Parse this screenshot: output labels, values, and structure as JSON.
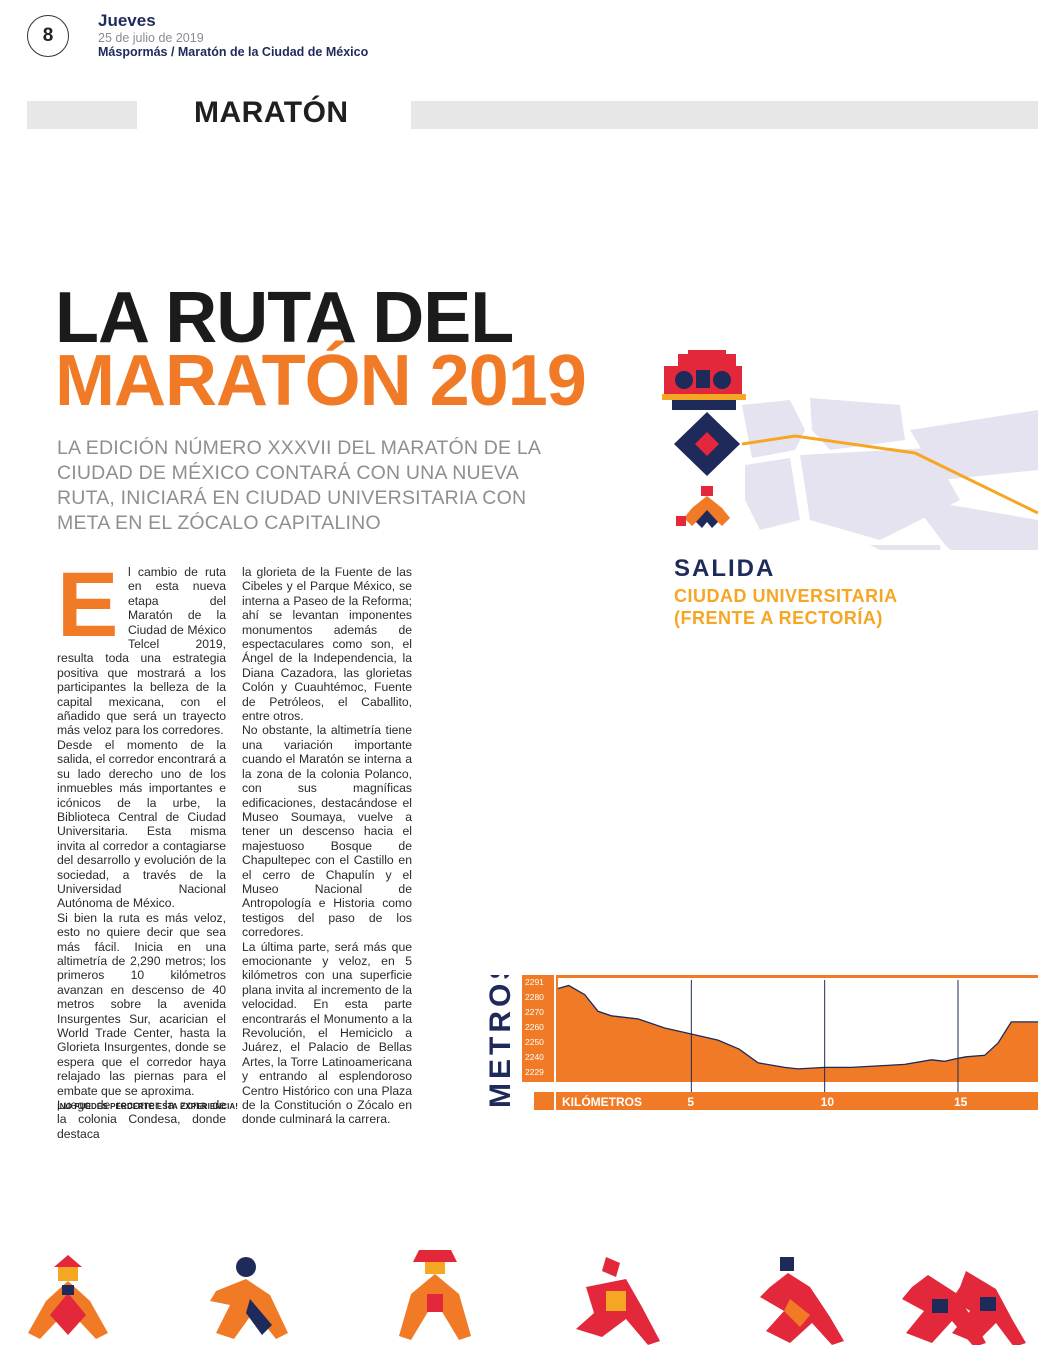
{
  "header": {
    "page_number": "8",
    "day": "Jueves",
    "date": "25 de julio de 2019",
    "section_path": "Máspormás / Maratón de la Ciudad de México",
    "section_title": "MARATÓN"
  },
  "article": {
    "title_line1": "LA RUTA DEL",
    "title_line2": "MARATÓN 2019",
    "subtitle": "LA EDICIÓN NÚMERO XXXVII DEL MARATÓN DE LA CIUDAD DE MÉXICO CONTARÁ CON UNA NUEVA RUTA, INICIARÁ EN CIUDAD UNIVERSITARIA CON META EN EL ZÓCALO CAPITALINO",
    "drop_cap": "E",
    "col1_p1": "l cambio de ruta en esta nueva etapa del Maratón de la Ciudad de México Telcel 2019, resulta toda una estrategia positiva que mostrará a los participantes la belleza de la capital mexicana, con el añadido que será un trayecto más veloz para los corredores.",
    "col1_p2": "Desde el momento de la salida, el corredor encontrará a su lado derecho uno de los inmuebles más importantes e icónicos de la urbe, la Biblioteca Central de Ciudad Universitaria. Esta misma invita al corredor a contagiarse del desarrollo y evolución de la sociedad, a través de la Universidad Nacional Autónoma de México.",
    "col1_p3": "Si bien la ruta es más veloz, esto no quiere decir que sea más fácil. Inicia en una altimetría de 2,290 metros; los primeros 10 kilómetros avanzan en descenso de 40 metros sobre la avenida Insurgentes Sur, acarician el World Trade Center, hasta la Glorieta Insurgentes, donde se espera que el corredor haya relajado las piernas para el embate que se aproxima.",
    "col1_p4": "Luego de recorrer la zona de la colonia Condesa, donde destaca",
    "col2_p1": "la glorieta de la Fuente de las Cibeles y el Parque México, se interna a Paseo de la Reforma; ahí se levantan imponentes monumentos además de espectaculares como son, el Ángel de la Independencia, la Diana Cazadora, las glorietas Colón y Cuauhtémoc, Fuente de Petróleos, el Caballito, entre otros.",
    "col2_p2": "No obstante, la altimetría tiene una variación importante cuando el Maratón se interna a la zona de la colonia Polanco, con sus magníficas edificaciones, destacándose el Museo Soumaya, vuelve a tener un descenso hacia el majestuoso Bosque de Chapultepec con el Castillo en el cerro de Chapulín y el Museo Nacional de Antropología e Historia como testigos del paso de los corredores.",
    "col2_p3": "La última parte, será más que emocionante y veloz, en 5 kilómetros con una superficie plana invita al incremento de la velocidad. En esta parte encontrarás el Monumento a la Revolución, el Hemiciclo a Juárez, el Palacio de Bellas Artes, la Torre Latinoamericana y entrando al esplendoroso Centro Histórico con una Plaza de la Constitución o Zócalo en donde culminará la carrera.",
    "tagline": "¡NO PUEDES PERDERTE ESTA EXPERIENCIA!"
  },
  "map": {
    "start_label": "SALIDA",
    "place_line1": "CIUDAD UNIVERSITARIA",
    "place_line2": "(FRENTE A RECTORÍA)"
  },
  "colors": {
    "orange": "#f07a26",
    "navy": "#1e2a5a",
    "gold": "#f5a623",
    "map_block": "#e4e3ef",
    "red": "#e2283a"
  },
  "chart_data": {
    "type": "area",
    "ylabel": "METROS",
    "xlabel": "KILÓMETROS",
    "y_ticks": [
      "2291",
      "2280",
      "2270",
      "2260",
      "2250",
      "2240",
      "2229"
    ],
    "x_ticks": [
      "5",
      "10",
      "15"
    ],
    "ylim": [
      2229,
      2291
    ],
    "xlim": [
      0,
      18
    ],
    "grid": "vertical at 5, 10, 15",
    "x": [
      0,
      0.4,
      1,
      1.5,
      2,
      3,
      4,
      5,
      6,
      6.8,
      7.5,
      8.5,
      9,
      10,
      11,
      12,
      13,
      14,
      14.5,
      15,
      15.3,
      16,
      16.5,
      17,
      18
    ],
    "y": [
      2288,
      2290,
      2284,
      2273,
      2270,
      2268,
      2262,
      2258,
      2254,
      2248,
      2239,
      2236,
      2235,
      2236,
      2236,
      2237,
      2238,
      2241,
      2240,
      2242,
      2243,
      2244,
      2252,
      2266,
      2266
    ]
  },
  "icons": [
    "pyramid-icon",
    "diamond-icon",
    "runner-icon-1",
    "runner-icon-2",
    "runner-icon-3",
    "runner-icon-4",
    "runner-icon-5",
    "runner-icon-6"
  ]
}
